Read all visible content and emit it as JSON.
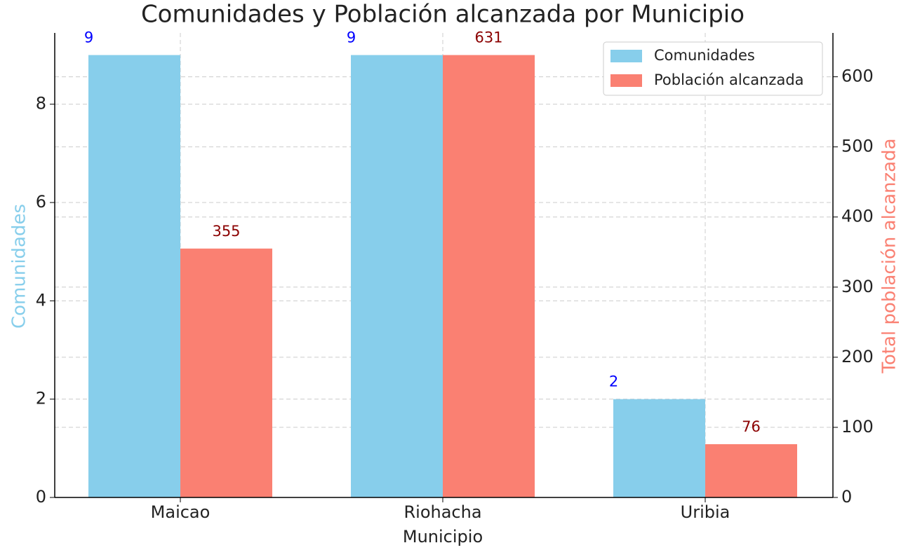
{
  "chart_data": {
    "type": "bar",
    "title": "Comunidades y Población alcanzada por Municipio",
    "xlabel": "Municipio",
    "ylabel": "Comunidades",
    "y2label": "Total población alcanzada",
    "categories": [
      "Maicao",
      "Riohacha",
      "Uribia"
    ],
    "series": [
      {
        "name": "Comunidades",
        "color": "#87ceeb",
        "label_color": "#0000ff",
        "axis": "y",
        "values": [
          9,
          9,
          2
        ]
      },
      {
        "name": "Población alcanzada",
        "color": "#fa8072",
        "label_color": "#8b0000",
        "axis": "y2",
        "values": [
          355,
          631,
          76
        ]
      }
    ],
    "ylim": [
      0,
      9.45
    ],
    "yticks": [
      0,
      2,
      4,
      6,
      8
    ],
    "y2lim": [
      0,
      662.55
    ],
    "y2ticks": [
      0,
      100,
      200,
      300,
      400,
      500,
      600
    ],
    "ylabel_color": "#87ceeb",
    "y2label_color": "#fa8072",
    "grid": true,
    "legend": "upper right"
  }
}
